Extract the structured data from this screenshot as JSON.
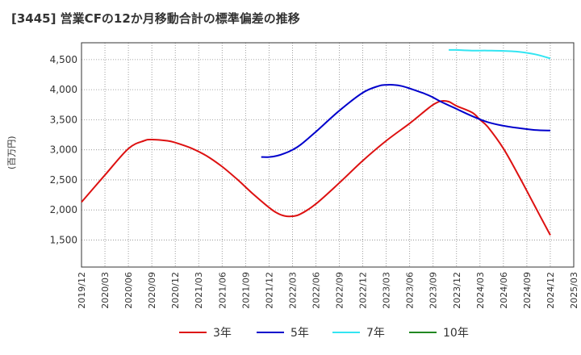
{
  "title": "[3445]  営業CFの12か月移動合計の標準偏差の推移",
  "unit_label": "(百万円)",
  "chart_data": {
    "type": "line",
    "title": "[3445]  営業CFの12か月移動合計の標準偏差の推移",
    "ylabel": "(百万円)",
    "xlabel": "",
    "ylim": [
      1050,
      4780
    ],
    "y_ticks": [
      1500,
      2000,
      2500,
      3000,
      3500,
      4000,
      4500
    ],
    "y_tick_labels": [
      "1,500",
      "2,000",
      "2,500",
      "3,000",
      "3,500",
      "4,000",
      "4,500"
    ],
    "x_ticks": [
      "2019/12",
      "2020/03",
      "2020/06",
      "2020/09",
      "2020/12",
      "2021/03",
      "2021/06",
      "2021/09",
      "2021/12",
      "2022/03",
      "2022/06",
      "2022/09",
      "2022/12",
      "2023/03",
      "2023/06",
      "2023/09",
      "2023/12",
      "2024/03",
      "2024/06",
      "2024/09",
      "2024/12",
      "2025/03"
    ],
    "grid": true,
    "legend_position": "bottom",
    "series": [
      {
        "name": "3年",
        "color": "#dd1111",
        "x": [
          "2019/12",
          "2020/03",
          "2020/06",
          "2020/08",
          "2020/09",
          "2020/11",
          "2020/12",
          "2021/02",
          "2021/04",
          "2021/06",
          "2021/08",
          "2021/10",
          "2021/12",
          "2022/01",
          "2022/02",
          "2022/03",
          "2022/04",
          "2022/06",
          "2022/09",
          "2022/12",
          "2023/03",
          "2023/06",
          "2023/08",
          "2023/09",
          "2023/10",
          "2023/11",
          "2023/12",
          "2024/02",
          "2024/03",
          "2024/04",
          "2024/06",
          "2024/08",
          "2024/10",
          "2024/12"
        ],
        "y": [
          2130,
          2580,
          3020,
          3150,
          3170,
          3150,
          3120,
          3030,
          2900,
          2720,
          2500,
          2260,
          2040,
          1950,
          1900,
          1895,
          1930,
          2100,
          2450,
          2820,
          3150,
          3440,
          3650,
          3750,
          3810,
          3800,
          3730,
          3620,
          3500,
          3380,
          3020,
          2560,
          2070,
          1580
        ]
      },
      {
        "name": "5年",
        "color": "#0000cc",
        "x": [
          "2021/11",
          "2021/12",
          "2022/01",
          "2022/02",
          "2022/03",
          "2022/04",
          "2022/06",
          "2022/09",
          "2022/12",
          "2023/02",
          "2023/03",
          "2023/04",
          "2023/05",
          "2023/06",
          "2023/08",
          "2023/09",
          "2023/10",
          "2023/12",
          "2024/02",
          "2024/04",
          "2024/06",
          "2024/08",
          "2024/10",
          "2024/12"
        ],
        "y": [
          2880,
          2880,
          2900,
          2940,
          3000,
          3080,
          3300,
          3650,
          3950,
          4060,
          4080,
          4080,
          4060,
          4020,
          3930,
          3870,
          3800,
          3680,
          3560,
          3460,
          3400,
          3360,
          3330,
          3320
        ]
      },
      {
        "name": "7年",
        "color": "#33e5f2",
        "x": [
          "2023/11",
          "2023/12",
          "2024/02",
          "2024/04",
          "2024/06",
          "2024/08",
          "2024/10",
          "2024/12"
        ],
        "y": [
          4660,
          4660,
          4650,
          4650,
          4645,
          4630,
          4590,
          4520
        ]
      },
      {
        "name": "10年",
        "color": "#228822",
        "x": [],
        "y": []
      }
    ]
  }
}
